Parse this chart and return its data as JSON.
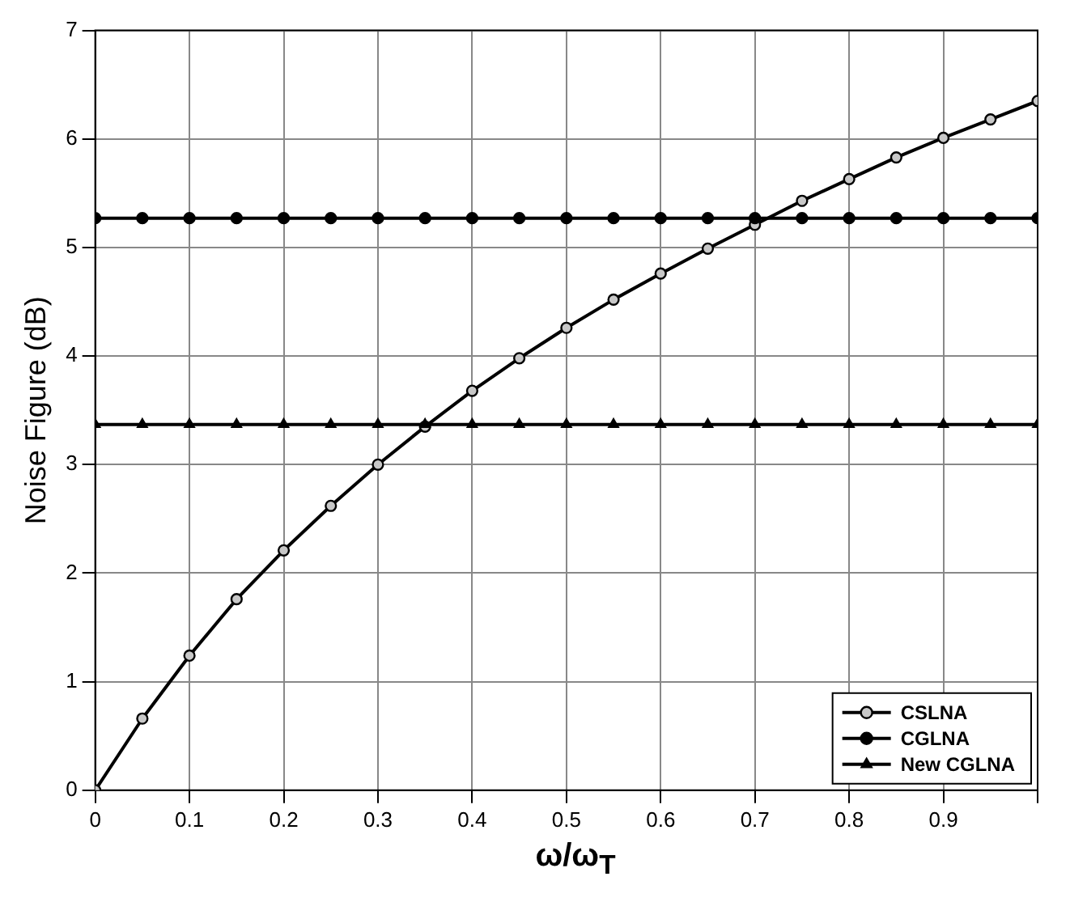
{
  "chart_data": {
    "type": "line",
    "xlabel": "ω/ω$_{T}$",
    "ylabel": "Noise Figure (dB)",
    "x": [
      0,
      0.05,
      0.1,
      0.15,
      0.2,
      0.25,
      0.3,
      0.35,
      0.4,
      0.45,
      0.5,
      0.55,
      0.6,
      0.65,
      0.7,
      0.75,
      0.8,
      0.85,
      0.9,
      0.95,
      1.0
    ],
    "series": [
      {
        "name": "CSLNA",
        "color": "#000000",
        "marker": "circle",
        "values": [
          0,
          0.66,
          1.24,
          1.76,
          2.21,
          2.62,
          3.0,
          3.35,
          3.68,
          3.98,
          4.26,
          4.52,
          4.76,
          4.99,
          5.21,
          5.43,
          5.63,
          5.83,
          6.01,
          6.18,
          6.35
        ]
      },
      {
        "name": "CGLNA",
        "color": "#000000",
        "marker": "circle",
        "values": [
          5.27,
          5.27,
          5.27,
          5.27,
          5.27,
          5.27,
          5.27,
          5.27,
          5.27,
          5.27,
          5.27,
          5.27,
          5.27,
          5.27,
          5.27,
          5.27,
          5.27,
          5.27,
          5.27,
          5.27,
          5.27
        ]
      },
      {
        "name": "New CGLNA",
        "color": "#000000",
        "marker": "triangle",
        "values": [
          3.37,
          3.37,
          3.37,
          3.37,
          3.37,
          3.37,
          3.37,
          3.37,
          3.37,
          3.37,
          3.37,
          3.37,
          3.37,
          3.37,
          3.37,
          3.37,
          3.37,
          3.37,
          3.37,
          3.37,
          3.37
        ]
      }
    ],
    "xlim": [
      0,
      1
    ],
    "xticks": [
      0,
      0.1,
      0.2,
      0.3,
      0.4,
      0.5,
      0.6,
      0.7,
      0.8,
      0.9,
      {
        "value": 1,
        "label": null
      }
    ],
    "ylim": [
      0,
      7
    ],
    "yticks": [
      0,
      1,
      2,
      3,
      4,
      5,
      6,
      7
    ],
    "grid": true,
    "legend": "bottom right",
    "line_style": "solid"
  }
}
